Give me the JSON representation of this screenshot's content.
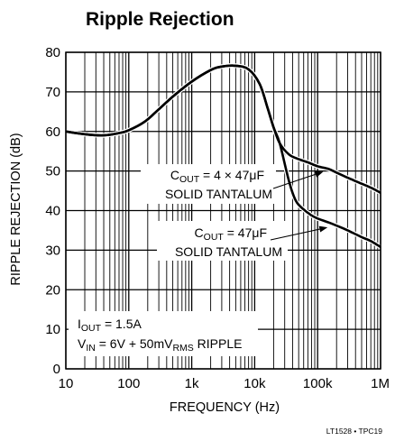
{
  "chart_data": {
    "type": "line",
    "title": "Ripple Rejection",
    "xlabel": "FREQUENCY (Hz)",
    "ylabel": "RIPPLE REJECTION (dB)",
    "xscale": "log",
    "xlim": [
      10,
      1000000
    ],
    "ylim": [
      0,
      80
    ],
    "grid": true,
    "x_ticks": [
      {
        "value": 10,
        "label": "10"
      },
      {
        "value": 100,
        "label": "100"
      },
      {
        "value": 1000,
        "label": "1k"
      },
      {
        "value": 10000,
        "label": "10k"
      },
      {
        "value": 100000,
        "label": "100k"
      },
      {
        "value": 1000000,
        "label": "1M"
      }
    ],
    "y_ticks": [
      {
        "value": 0,
        "label": "0"
      },
      {
        "value": 10,
        "label": "10"
      },
      {
        "value": 20,
        "label": "20"
      },
      {
        "value": 30,
        "label": "30"
      },
      {
        "value": 40,
        "label": "40"
      },
      {
        "value": 50,
        "label": "50"
      },
      {
        "value": 60,
        "label": "60"
      },
      {
        "value": 70,
        "label": "70"
      },
      {
        "value": 80,
        "label": "80"
      }
    ],
    "shared": {
      "x": [
        10,
        20,
        40,
        70,
        100,
        180,
        300,
        500,
        1000,
        2000,
        3000,
        5000,
        8000,
        12000,
        16000,
        20000,
        25000
      ],
      "y": [
        60,
        59.3,
        59,
        59.6,
        60.3,
        62.5,
        65.6,
        68.8,
        72.6,
        75.5,
        76.4,
        76.6,
        75.7,
        72,
        66,
        61,
        57
      ]
    },
    "series": [
      {
        "annotation": "C_OUT = 4 × 47μF SOLID TANTALUM",
        "x": [
          35000,
          50000,
          70000,
          100000,
          150000,
          200000,
          300000,
          500000,
          700000,
          1000000
        ],
        "y": [
          54.2,
          53,
          52.2,
          51.2,
          50.5,
          49.6,
          48.3,
          46.8,
          45.8,
          44.5
        ]
      },
      {
        "annotation": "C_OUT = 47μF SOLID TANTALUM",
        "x": [
          35000,
          45000,
          60000,
          80000,
          100000,
          150000,
          200000,
          300000,
          500000,
          700000,
          1000000
        ],
        "y": [
          47.5,
          42.5,
          40.3,
          38.8,
          38,
          37,
          36.2,
          35,
          33.3,
          32.3,
          30.8
        ]
      }
    ],
    "annotations": [
      {
        "text_parts": [
          "C",
          "OUT",
          " = 4 × 47μF"
        ],
        "line2": "SOLID TANTALUM",
        "arrow_to": {
          "x": 150000,
          "y": 50.5
        }
      },
      {
        "text_parts": [
          "C",
          "OUT",
          " = 47μF"
        ],
        "line2": "SOLID TANTALUM",
        "arrow_to": {
          "x": 200000,
          "y": 36.2
        }
      },
      {
        "text_parts": [
          "I",
          "OUT",
          " = 1.5A"
        ]
      },
      {
        "text_parts": [
          "V",
          "IN",
          " = 6V + 50mV",
          "RMS",
          " RIPPLE"
        ]
      }
    ],
    "figure_id": "LT1528 • TPC19"
  }
}
